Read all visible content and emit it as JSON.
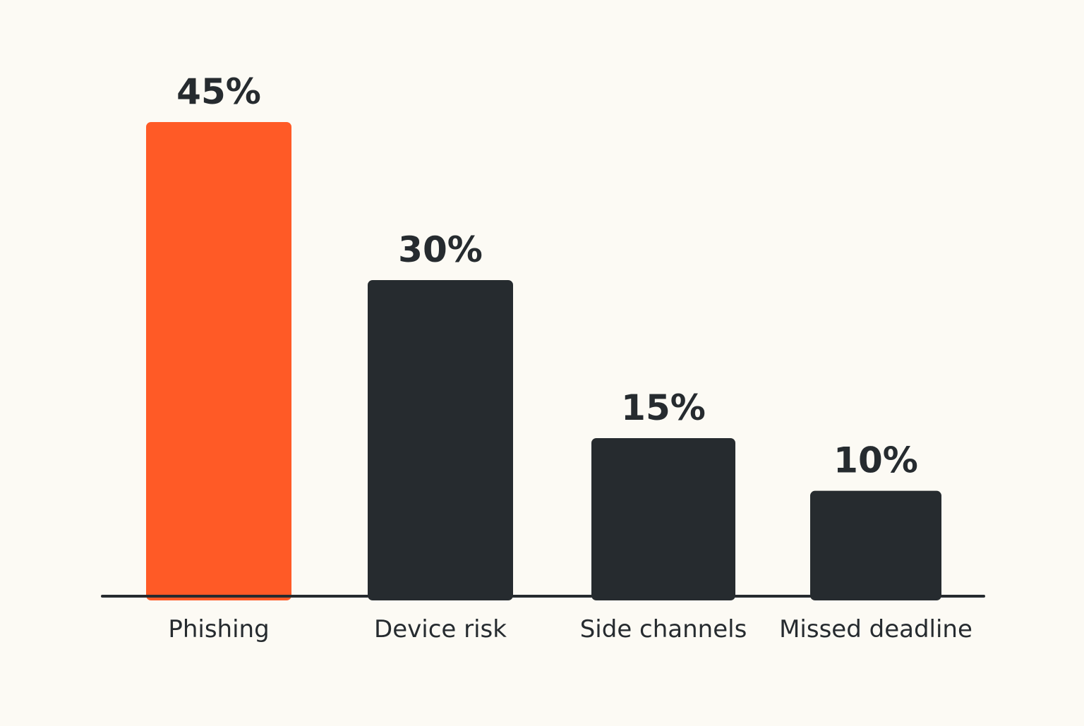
{
  "colors": {
    "background": "#FCFAF4",
    "highlight": "#FF5A26",
    "bar": "#262B2F",
    "axis": "#262B2F",
    "text": "#262B2F"
  },
  "chart_data": {
    "type": "bar",
    "categories": [
      "Phishing",
      "Device risk",
      "Side channels",
      "Missed deadline"
    ],
    "values": [
      45,
      30,
      15,
      10
    ],
    "value_labels": [
      "45%",
      "30%",
      "15%",
      "10%"
    ],
    "highlight_index": 0,
    "title": "",
    "xlabel": "",
    "ylabel": "",
    "ylim": [
      0,
      45
    ],
    "grid": false,
    "legend": "none"
  }
}
